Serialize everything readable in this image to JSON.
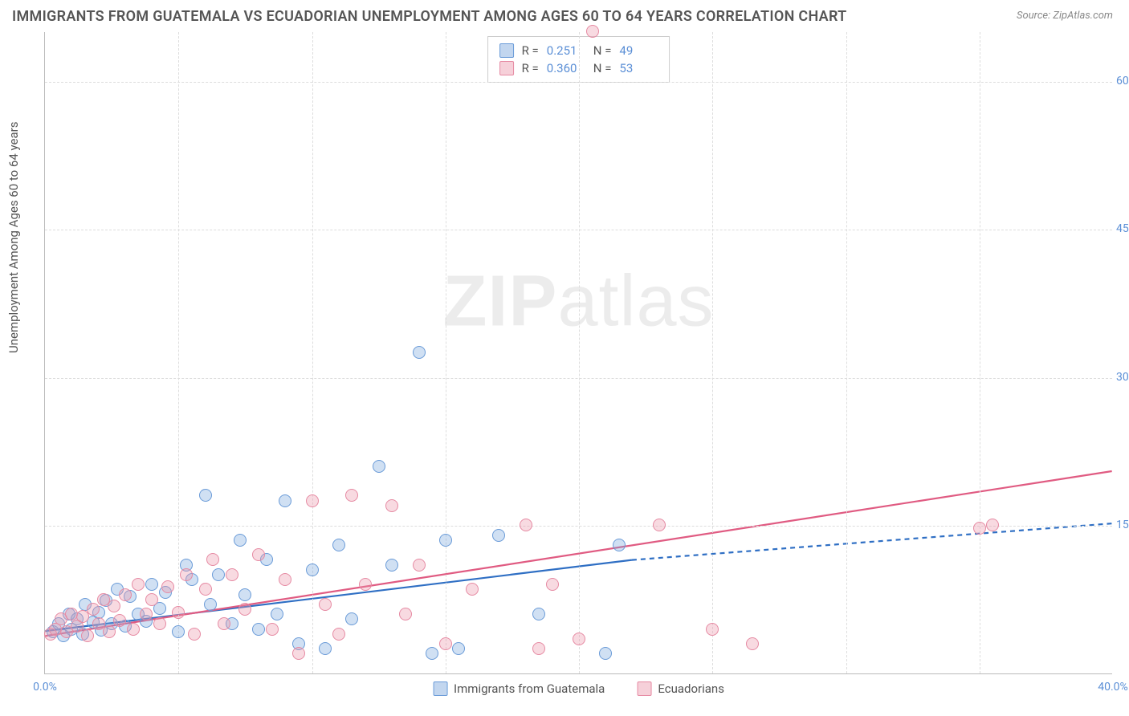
{
  "title": "IMMIGRANTS FROM GUATEMALA VS ECUADORIAN UNEMPLOYMENT AMONG AGES 60 TO 64 YEARS CORRELATION CHART",
  "source": "Source: ZipAtlas.com",
  "ylabel": "Unemployment Among Ages 60 to 64 years",
  "watermark_a": "ZIP",
  "watermark_b": "atlas",
  "chart": {
    "type": "scatter",
    "xlim": [
      0,
      40
    ],
    "ylim": [
      0,
      65
    ],
    "xticks": [
      0,
      40
    ],
    "xtick_labels": [
      "0.0%",
      "40.0%"
    ],
    "yticks": [
      15,
      30,
      45,
      60
    ],
    "ytick_labels": [
      "15.0%",
      "30.0%",
      "45.0%",
      "60.0%"
    ],
    "grid_h": [
      15,
      30,
      45,
      60
    ],
    "grid_v": [
      5,
      10,
      15,
      20,
      25,
      30,
      35
    ],
    "grid_color": "#dddddd",
    "background_color": "#ffffff",
    "axis_label_color": "#5b8fd6",
    "marker_size": 16,
    "marker_opacity": 0.35,
    "series": [
      {
        "name": "Immigrants from Guatemala",
        "color_fill": "rgba(120,165,220,0.35)",
        "color_stroke": "#6a9bd8",
        "cls": "blue",
        "R": "0.251",
        "N": "49",
        "trend": {
          "x1": 0,
          "y1": 4.3,
          "x2": 22,
          "y2": 11.5,
          "dash_x2": 40,
          "dash_y2": 15.2,
          "stroke": "#2f6fc4",
          "width": 2.2
        },
        "points": [
          [
            0.3,
            4.2
          ],
          [
            0.5,
            5.0
          ],
          [
            0.7,
            3.8
          ],
          [
            0.9,
            6.0
          ],
          [
            1.0,
            4.5
          ],
          [
            1.2,
            5.5
          ],
          [
            1.4,
            4.0
          ],
          [
            1.5,
            7.0
          ],
          [
            1.8,
            5.2
          ],
          [
            2.0,
            6.2
          ],
          [
            2.1,
            4.4
          ],
          [
            2.3,
            7.4
          ],
          [
            2.5,
            5.0
          ],
          [
            2.7,
            8.5
          ],
          [
            3.0,
            4.8
          ],
          [
            3.2,
            7.8
          ],
          [
            3.5,
            6.0
          ],
          [
            3.8,
            5.3
          ],
          [
            4.0,
            9.0
          ],
          [
            4.3,
            6.6
          ],
          [
            4.5,
            8.2
          ],
          [
            5.0,
            4.2
          ],
          [
            5.3,
            11.0
          ],
          [
            5.5,
            9.5
          ],
          [
            6.0,
            18.0
          ],
          [
            6.2,
            7.0
          ],
          [
            6.5,
            10.0
          ],
          [
            7.0,
            5.0
          ],
          [
            7.3,
            13.5
          ],
          [
            7.5,
            8.0
          ],
          [
            8.0,
            4.5
          ],
          [
            8.3,
            11.5
          ],
          [
            8.7,
            6.0
          ],
          [
            9.0,
            17.5
          ],
          [
            9.5,
            3.0
          ],
          [
            10.0,
            10.5
          ],
          [
            10.5,
            2.5
          ],
          [
            11.0,
            13.0
          ],
          [
            11.5,
            5.5
          ],
          [
            12.5,
            21.0
          ],
          [
            13.0,
            11.0
          ],
          [
            14.0,
            32.5
          ],
          [
            14.5,
            2.0
          ],
          [
            15.0,
            13.5
          ],
          [
            15.5,
            2.5
          ],
          [
            17.0,
            14.0
          ],
          [
            18.5,
            6.0
          ],
          [
            21.0,
            2.0
          ],
          [
            21.5,
            13.0
          ]
        ]
      },
      {
        "name": "Ecuadorians",
        "color_fill": "rgba(235,150,170,0.35)",
        "color_stroke": "#e68aa3",
        "cls": "pink",
        "R": "0.360",
        "N": "53",
        "trend": {
          "x1": 0,
          "y1": 3.8,
          "x2": 40,
          "y2": 20.5,
          "dash_x2": null,
          "dash_y2": null,
          "stroke": "#e05b82",
          "width": 2.2
        },
        "points": [
          [
            0.2,
            4.0
          ],
          [
            0.4,
            4.5
          ],
          [
            0.6,
            5.5
          ],
          [
            0.8,
            4.2
          ],
          [
            1.0,
            6.0
          ],
          [
            1.2,
            4.8
          ],
          [
            1.4,
            5.8
          ],
          [
            1.6,
            3.8
          ],
          [
            1.8,
            6.5
          ],
          [
            2.0,
            5.0
          ],
          [
            2.2,
            7.5
          ],
          [
            2.4,
            4.2
          ],
          [
            2.6,
            6.8
          ],
          [
            2.8,
            5.4
          ],
          [
            3.0,
            8.0
          ],
          [
            3.3,
            4.5
          ],
          [
            3.5,
            9.0
          ],
          [
            3.8,
            6.0
          ],
          [
            4.0,
            7.5
          ],
          [
            4.3,
            5.0
          ],
          [
            4.6,
            8.8
          ],
          [
            5.0,
            6.2
          ],
          [
            5.3,
            10.0
          ],
          [
            5.6,
            4.0
          ],
          [
            6.0,
            8.5
          ],
          [
            6.3,
            11.5
          ],
          [
            6.7,
            5.0
          ],
          [
            7.0,
            10.0
          ],
          [
            7.5,
            6.5
          ],
          [
            8.0,
            12.0
          ],
          [
            8.5,
            4.5
          ],
          [
            9.0,
            9.5
          ],
          [
            9.5,
            2.0
          ],
          [
            10.0,
            17.5
          ],
          [
            10.5,
            7.0
          ],
          [
            11.0,
            4.0
          ],
          [
            11.5,
            18.0
          ],
          [
            12.0,
            9.0
          ],
          [
            13.0,
            17.0
          ],
          [
            13.5,
            6.0
          ],
          [
            14.0,
            11.0
          ],
          [
            15.0,
            3.0
          ],
          [
            16.0,
            8.5
          ],
          [
            18.0,
            15.0
          ],
          [
            18.5,
            2.5
          ],
          [
            19.0,
            9.0
          ],
          [
            20.0,
            3.5
          ],
          [
            20.5,
            65.0
          ],
          [
            23.0,
            15.0
          ],
          [
            25.0,
            4.5
          ],
          [
            26.5,
            3.0
          ],
          [
            35.5,
            15.0
          ],
          [
            35.0,
            14.7
          ]
        ]
      }
    ]
  },
  "legend_top": [
    {
      "cls": "blue",
      "R_label": "R =",
      "R": "0.251",
      "N_label": "N =",
      "N": "49"
    },
    {
      "cls": "pink",
      "R_label": "R =",
      "R": "0.360",
      "N_label": "N =",
      "N": "53"
    }
  ],
  "legend_bottom": [
    {
      "cls": "blue",
      "label": "Immigrants from Guatemala"
    },
    {
      "cls": "pink",
      "label": "Ecuadorians"
    }
  ]
}
